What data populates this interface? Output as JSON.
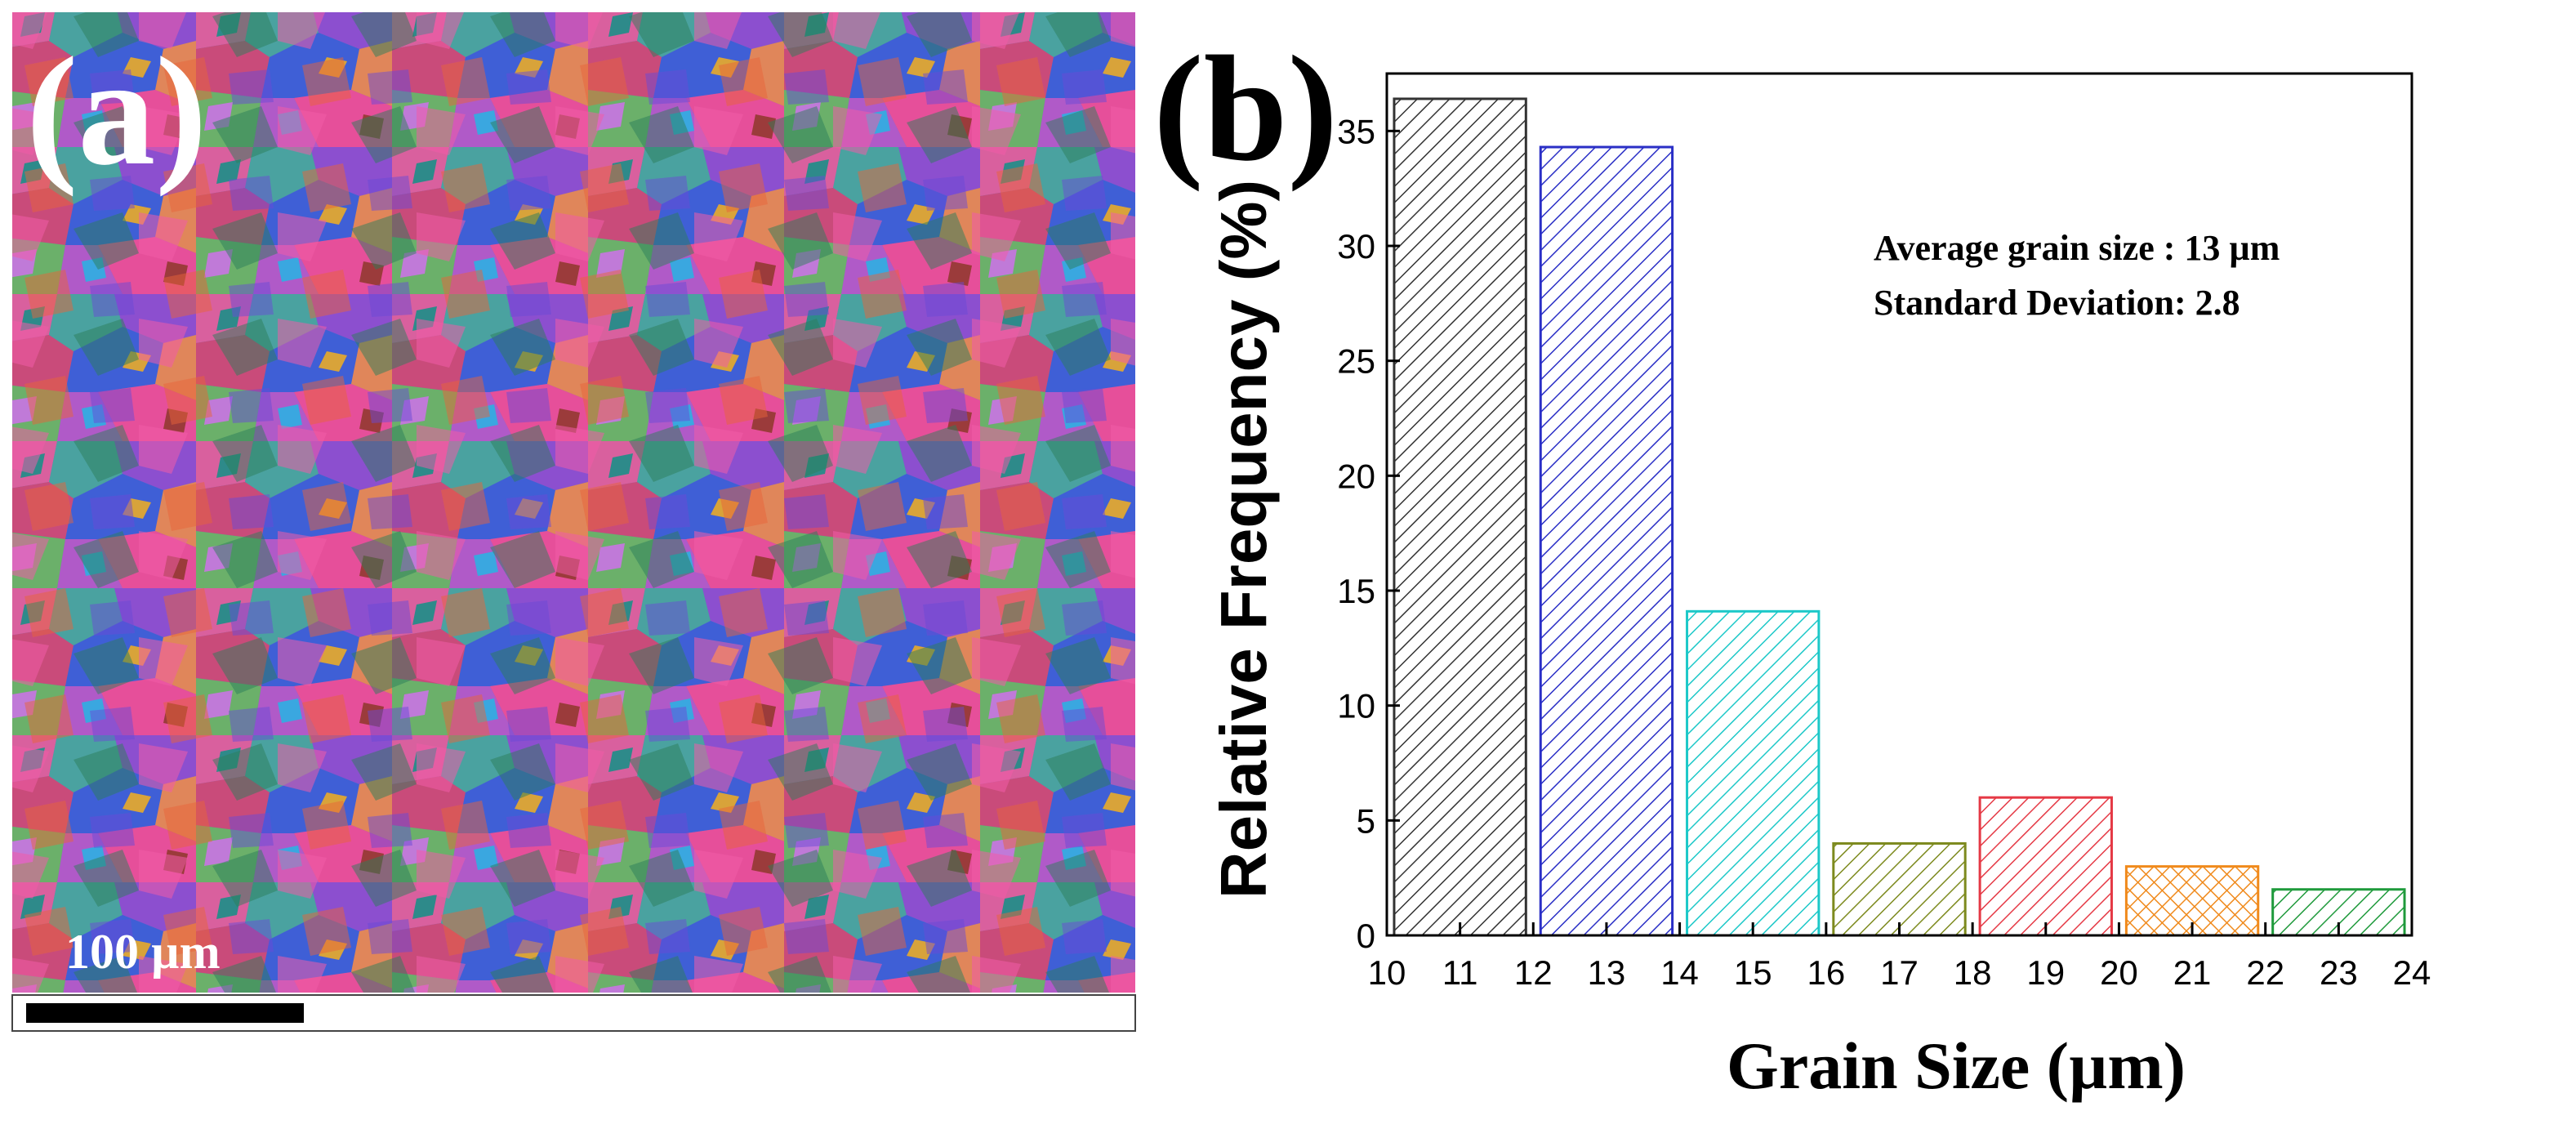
{
  "panel_a": {
    "label": "(a)",
    "scale_bar_label": "100 µm"
  },
  "chart_data": {
    "type": "bar",
    "panel_label": "(b)",
    "title": "",
    "xlabel": "Grain Size (µm)",
    "ylabel": "Relative Frequency (%)",
    "xlim": [
      10,
      24
    ],
    "ylim": [
      0,
      37.5
    ],
    "xticks": [
      "10",
      "11",
      "12",
      "13",
      "14",
      "15",
      "16",
      "17",
      "18",
      "19",
      "20",
      "21",
      "22",
      "23",
      "24"
    ],
    "yticks": [
      "0",
      "5",
      "10",
      "15",
      "20",
      "25",
      "30",
      "35"
    ],
    "bins": [
      {
        "range": [
          10,
          12
        ],
        "value": 36.4,
        "color": "#333333",
        "hatch": "diag"
      },
      {
        "range": [
          12,
          14
        ],
        "value": 34.3,
        "color": "#2a2fc6",
        "hatch": "diag"
      },
      {
        "range": [
          14,
          16
        ],
        "value": 14.1,
        "color": "#1cc8c8",
        "hatch": "diag"
      },
      {
        "range": [
          16,
          18
        ],
        "value": 4.0,
        "color": "#7d8a1e",
        "hatch": "diag"
      },
      {
        "range": [
          18,
          20
        ],
        "value": 6.0,
        "color": "#e53945",
        "hatch": "diag"
      },
      {
        "range": [
          20,
          22
        ],
        "value": 3.0,
        "color": "#f08a1c",
        "hatch": "cross"
      },
      {
        "range": [
          22,
          24
        ],
        "value": 2.0,
        "color": "#1f9a3c",
        "hatch": "diag"
      }
    ],
    "annotations": [
      "Average grain size : 13 µm",
      "Standard Deviation: 2.8"
    ]
  }
}
